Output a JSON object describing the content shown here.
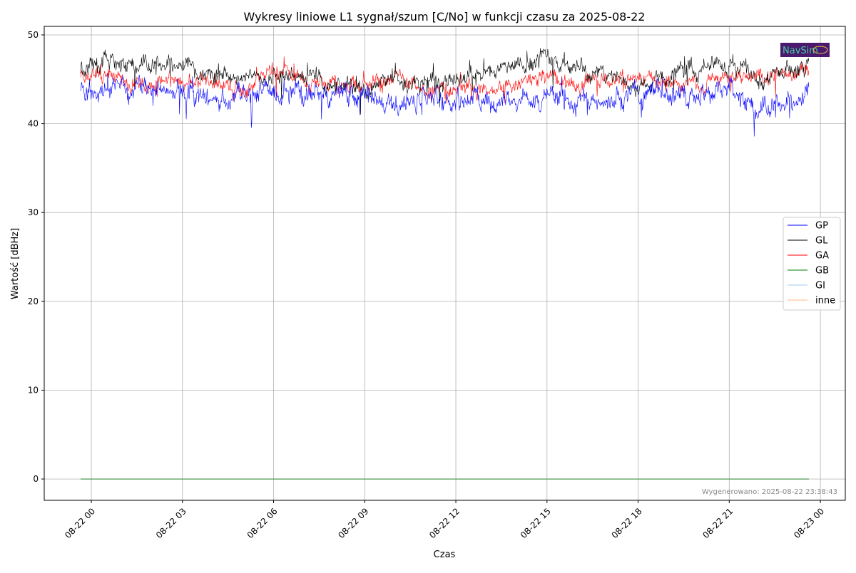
{
  "chart_data": {
    "type": "line",
    "title": "Wykresy liniowe L1 sygnał/szum [C/No] w funkcji czasu za 2025-08-22",
    "xlabel": "Czas",
    "ylabel": "Wartość [dBHz]",
    "xlim_hours_from_2025_08_22_00": [
      -1.55,
      24.82
    ],
    "ylim": [
      -2.4,
      50.96
    ],
    "yticks": [
      0,
      10,
      20,
      30,
      40,
      50
    ],
    "xticks": [
      {
        "hour": 0,
        "label": "08-22 00"
      },
      {
        "hour": 3,
        "label": "08-22 03"
      },
      {
        "hour": 6,
        "label": "08-22 06"
      },
      {
        "hour": 9,
        "label": "08-22 09"
      },
      {
        "hour": 12,
        "label": "08-22 12"
      },
      {
        "hour": 15,
        "label": "08-22 15"
      },
      {
        "hour": 18,
        "label": "08-22 18"
      },
      {
        "hour": 21,
        "label": "08-22 21"
      },
      {
        "hour": 24,
        "label": "08-23 00"
      }
    ],
    "grid": true,
    "legend_position": "center-right",
    "data_start_hour": -0.35,
    "data_end_hour": 23.62,
    "series_note": "hourly approximate mean values at hours 0..24; noise amplitude in dBHz",
    "series": [
      {
        "name": "GP",
        "color": "#0000ff",
        "noise": 1.1,
        "values": [
          43.8,
          44,
          44,
          43.5,
          42.8,
          43,
          43.5,
          43.5,
          43.5,
          43.2,
          42,
          42.3,
          43,
          42.8,
          42.5,
          42.8,
          42.8,
          43,
          43.8,
          43,
          43.5,
          44.5,
          41.5,
          42.5,
          44.5
        ]
      },
      {
        "name": "GL",
        "color": "#000000",
        "noise": 0.9,
        "values": [
          46.2,
          47,
          46.5,
          47,
          45.5,
          45.3,
          45.5,
          45.5,
          44.2,
          44,
          44.8,
          44.5,
          44.8,
          46,
          46.5,
          47.2,
          46,
          45.5,
          44.2,
          45.5,
          46,
          47,
          45,
          46.3,
          46
        ]
      },
      {
        "name": "GA",
        "color": "#ff0000",
        "noise": 0.8,
        "values": [
          45.3,
          45,
          44,
          45,
          44.3,
          44,
          45.8,
          45,
          44.3,
          44,
          44.8,
          43.5,
          44.2,
          43.5,
          44.3,
          45,
          44.5,
          45.3,
          45.5,
          44.5,
          44.2,
          45.5,
          45.2,
          46.3,
          46
        ]
      },
      {
        "name": "GB",
        "color": "#008000",
        "noise": 0,
        "values": [
          0,
          0,
          0,
          0,
          0,
          0,
          0,
          0,
          0,
          0,
          0,
          0,
          0,
          0,
          0,
          0,
          0,
          0,
          0,
          0,
          0,
          0,
          0,
          0,
          0
        ]
      },
      {
        "name": "GI",
        "color": "#a6c8f0",
        "noise": 0,
        "values": [
          0,
          0,
          0,
          0,
          0,
          0,
          0,
          0,
          0,
          0,
          0,
          0,
          0,
          0,
          0,
          0,
          0,
          0,
          0,
          0,
          0,
          0,
          0,
          0,
          0
        ]
      },
      {
        "name": "inne",
        "color": "#ffbb88",
        "noise": 0,
        "values": [
          0,
          0,
          0,
          0,
          0,
          0,
          0,
          0,
          0,
          0,
          0,
          0,
          0,
          0,
          0,
          0,
          0,
          0,
          0,
          0,
          0,
          0,
          0,
          0,
          0
        ]
      }
    ],
    "annotation": "Wygenerowano: 2025-08-22 23:38:43"
  },
  "logo": {
    "text": "NavSim",
    "bg": "#4b1a6e",
    "fg": "#3fd0a0"
  }
}
